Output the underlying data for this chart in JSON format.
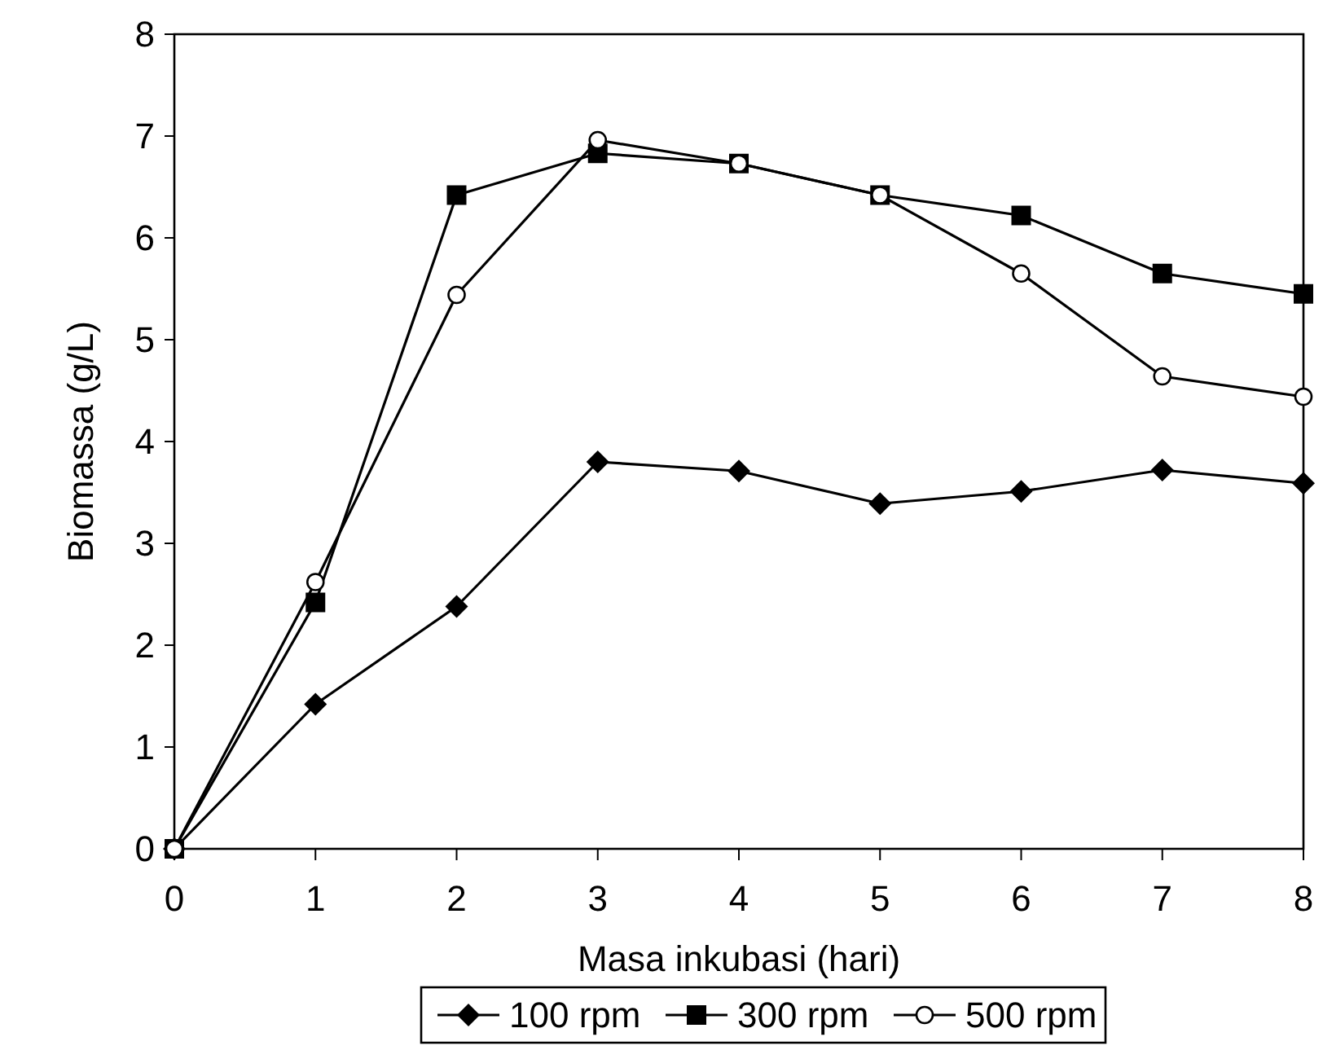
{
  "chart_data": {
    "type": "line",
    "xlabel": "Masa inkubasi (hari)",
    "ylabel": "Biomassa (g/L)",
    "x": [
      0,
      1,
      2,
      3,
      4,
      5,
      6,
      7,
      8
    ],
    "series": [
      {
        "name": "100 rpm",
        "color": "#000000",
        "marker": "diamond",
        "values": [
          0,
          1.42,
          2.38,
          3.8,
          3.71,
          3.39,
          3.51,
          3.72,
          3.59
        ]
      },
      {
        "name": "300 rpm",
        "color": "#000000",
        "marker": "square",
        "values": [
          0,
          2.42,
          6.42,
          6.83,
          6.73,
          6.42,
          6.22,
          5.65,
          5.45
        ]
      },
      {
        "name": "500 rpm",
        "color": "#000000",
        "marker": "circle",
        "values": [
          0,
          2.62,
          5.44,
          6.96,
          6.73,
          6.42,
          5.65,
          4.64,
          4.44
        ]
      }
    ],
    "xlim": [
      0,
      8
    ],
    "xticks": [
      0,
      1,
      2,
      3,
      4,
      5,
      6,
      7,
      8
    ],
    "ylim": [
      0,
      8
    ],
    "yticks": [
      0,
      1,
      2,
      3,
      4,
      5,
      6,
      7,
      8
    ],
    "grid": false,
    "legend": "bottom"
  }
}
